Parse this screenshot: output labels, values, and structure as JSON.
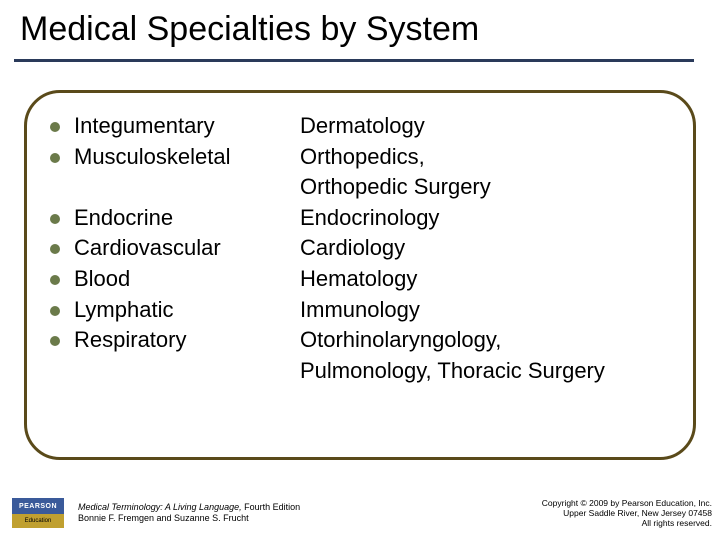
{
  "title": "Medical Specialties by System",
  "colors": {
    "title_rule": "#2a3a5a",
    "frame_border": "#5a4a1a",
    "bullet": "#6b7a4a",
    "logo_top_bg": "#3a5a9a",
    "logo_bottom_bg": "#c0a030",
    "text": "#000000",
    "background": "#ffffff"
  },
  "typography": {
    "title_fontsize": 34,
    "body_fontsize": 22,
    "footer_fontsize": 9
  },
  "rows": [
    {
      "system": "Integumentary",
      "specialty": "Dermatology"
    },
    {
      "system": "Musculoskeletal",
      "specialty": "Orthopedics,"
    },
    {
      "system": "",
      "specialty": "Orthopedic Surgery"
    },
    {
      "system": "Endocrine",
      "specialty": "Endocrinology"
    },
    {
      "system": "Cardiovascular",
      "specialty": "Cardiology"
    },
    {
      "system": "Blood",
      "specialty": "Hematology"
    },
    {
      "system": "Lymphatic",
      "specialty": "Immunology"
    },
    {
      "system": "Respiratory",
      "specialty": "Otorhinolaryngology,"
    },
    {
      "system": "",
      "specialty": "Pulmonology, Thoracic Surgery"
    }
  ],
  "logo": {
    "top": "PEARSON",
    "bottom": "Education"
  },
  "footer": {
    "book_title": "Medical Terminology: A Living Language,",
    "edition": " Fourth Edition",
    "authors": "Bonnie F. Fremgen and Suzanne S. Frucht",
    "copyright_line1": "Copyright © 2009 by Pearson Education, Inc.",
    "copyright_line2": "Upper Saddle River, New Jersey 07458",
    "copyright_line3": "All rights reserved."
  }
}
